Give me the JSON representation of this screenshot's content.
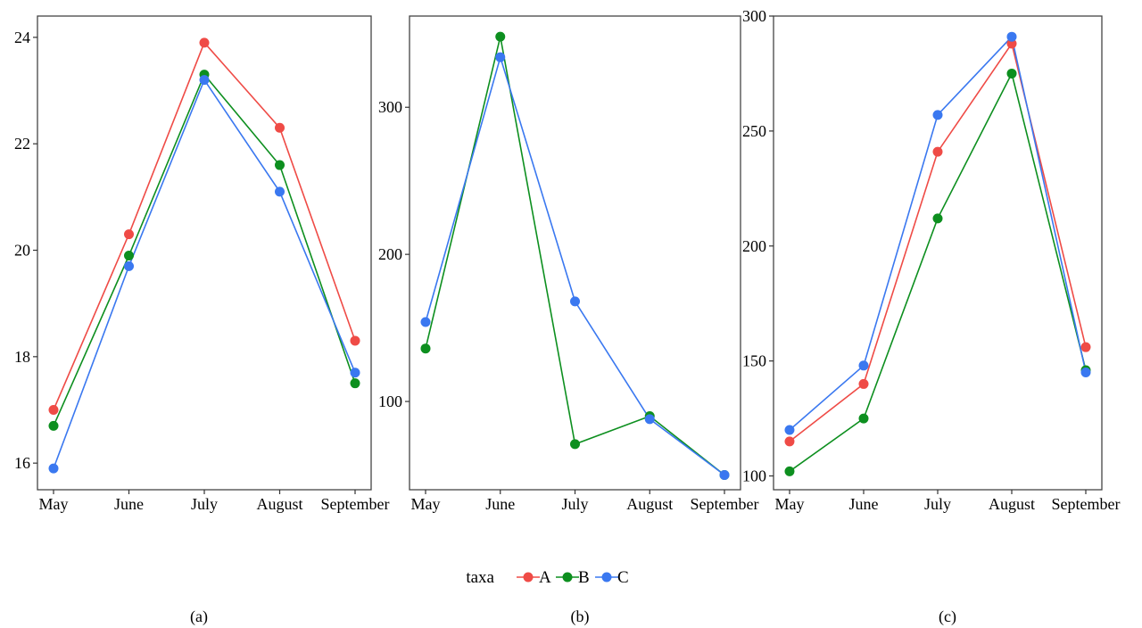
{
  "chart_data": [
    {
      "type": "line",
      "caption": "(a)",
      "categories": [
        "May",
        "June",
        "July",
        "August",
        "September"
      ],
      "ylim": [
        15.5,
        24.4
      ],
      "yticks": [
        16,
        18,
        20,
        22,
        24
      ],
      "grid": false,
      "series": [
        {
          "name": "A",
          "values": [
            17.0,
            20.3,
            23.9,
            22.3,
            18.3
          ]
        },
        {
          "name": "B",
          "values": [
            16.7,
            19.9,
            23.3,
            21.6,
            17.5
          ]
        },
        {
          "name": "C",
          "values": [
            15.9,
            19.7,
            23.2,
            21.1,
            17.7
          ]
        }
      ]
    },
    {
      "type": "line",
      "caption": "(b)",
      "categories": [
        "May",
        "June",
        "July",
        "August",
        "September"
      ],
      "ylim": [
        40,
        362
      ],
      "yticks": [
        100,
        200,
        300
      ],
      "grid": false,
      "series": [
        {
          "name": "B",
          "values": [
            136,
            348,
            71,
            90,
            50
          ]
        },
        {
          "name": "C",
          "values": [
            154,
            334,
            168,
            88,
            50
          ]
        }
      ]
    },
    {
      "type": "line",
      "caption": "(c)",
      "categories": [
        "May",
        "June",
        "July",
        "August",
        "September"
      ],
      "ylim": [
        94,
        300
      ],
      "yticks": [
        100,
        150,
        200,
        250,
        300
      ],
      "grid": false,
      "series": [
        {
          "name": "A",
          "values": [
            115,
            140,
            241,
            288,
            156
          ]
        },
        {
          "name": "B",
          "values": [
            102,
            125,
            212,
            275,
            146
          ]
        },
        {
          "name": "C",
          "values": [
            120,
            148,
            257,
            291,
            145
          ]
        }
      ]
    }
  ],
  "legend": {
    "title": "taxa",
    "placement": "bottom",
    "items": [
      {
        "label": "A",
        "color": "#ef4b46"
      },
      {
        "label": "B",
        "color": "#0d8f1f"
      },
      {
        "label": "C",
        "color": "#3a78f0"
      }
    ]
  },
  "series_colors": {
    "A": "#ef4b46",
    "B": "#0d8f1f",
    "C": "#3a78f0"
  }
}
